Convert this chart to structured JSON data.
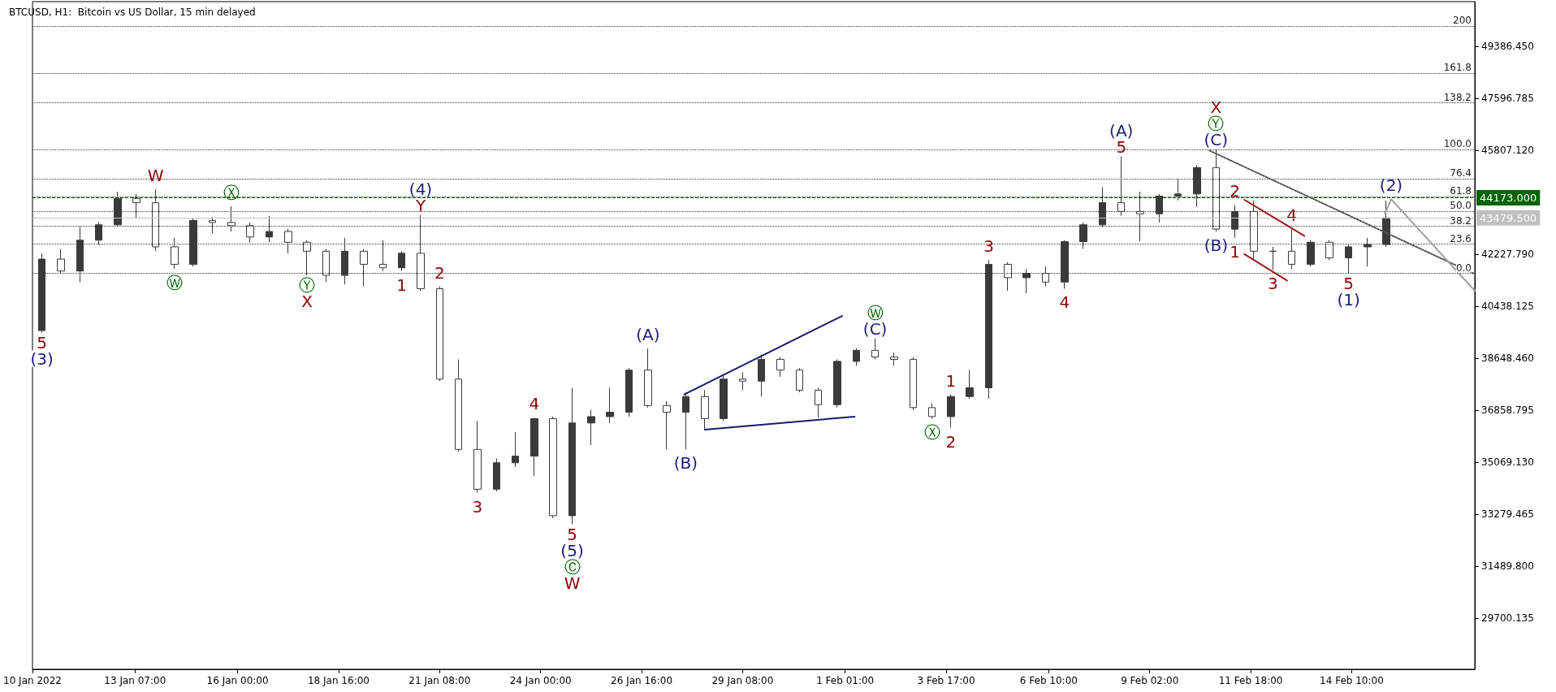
{
  "chart_data": {
    "type": "candlestick",
    "title": "BTCUSD, H1:  Bitcoin vs US Dollar, 15 min delayed",
    "color": "#3a3a3a",
    "x": [
      "2022-01-10T20:00",
      "2022-01-11T08:00",
      "2022-01-11T20:00",
      "2022-01-12T08:00",
      "2022-01-12T20:00",
      "2022-01-13T08:00",
      "2022-01-13T20:00",
      "2022-01-14T08:00",
      "2022-01-14T20:00",
      "2022-01-15T08:00",
      "2022-01-15T20:00",
      "2022-01-16T08:00",
      "2022-01-16T20:00",
      "2022-01-17T08:00",
      "2022-01-17T20:00",
      "2022-01-18T08:00",
      "2022-01-18T20:00",
      "2022-01-19T08:00",
      "2022-01-19T20:00",
      "2022-01-20T08:00",
      "2022-01-20T20:00",
      "2022-01-21T08:00",
      "2022-01-21T20:00",
      "2022-01-22T08:00",
      "2022-01-22T20:00",
      "2022-01-23T08:00",
      "2022-01-23T20:00",
      "2022-01-24T08:00",
      "2022-01-24T20:00",
      "2022-01-25T08:00",
      "2022-01-25T20:00",
      "2022-01-26T08:00",
      "2022-01-26T20:00",
      "2022-01-27T08:00",
      "2022-01-27T20:00",
      "2022-01-28T08:00",
      "2022-01-28T20:00",
      "2022-01-29T08:00",
      "2022-01-29T20:00",
      "2022-01-30T08:00",
      "2022-01-30T20:00",
      "2022-01-31T08:00",
      "2022-01-31T20:00",
      "2022-02-01T08:00",
      "2022-02-01T20:00",
      "2022-02-02T08:00",
      "2022-02-02T20:00",
      "2022-02-03T08:00",
      "2022-02-03T20:00",
      "2022-02-04T08:00",
      "2022-02-04T20:00",
      "2022-02-05T08:00",
      "2022-02-05T20:00",
      "2022-02-06T08:00",
      "2022-02-06T20:00",
      "2022-02-07T08:00",
      "2022-02-07T20:00",
      "2022-02-08T08:00",
      "2022-02-08T20:00",
      "2022-02-09T08:00",
      "2022-02-09T20:00",
      "2022-02-10T08:00",
      "2022-02-10T20:00",
      "2022-02-11T08:00",
      "2022-02-11T20:00",
      "2022-02-12T08:00",
      "2022-02-12T20:00",
      "2022-02-13T08:00",
      "2022-02-13T20:00",
      "2022-02-14T08:00",
      "2022-02-14T20:00",
      "2022-02-15T08:00"
    ],
    "ohlc": [
      [
        39600,
        42260,
        39530,
        42060
      ],
      [
        42060,
        42410,
        41570,
        41650
      ],
      [
        41650,
        43170,
        41270,
        42710
      ],
      [
        42710,
        43320,
        42560,
        43240
      ],
      [
        43240,
        44380,
        43170,
        44150
      ],
      [
        44150,
        44300,
        43470,
        44000
      ],
      [
        44000,
        44460,
        42330,
        42480
      ],
      [
        42480,
        42790,
        41720,
        41880
      ],
      [
        41880,
        43470,
        41800,
        43390
      ],
      [
        43390,
        43510,
        42940,
        43320
      ],
      [
        43320,
        43880,
        43010,
        43210
      ],
      [
        43210,
        43320,
        42630,
        42820
      ],
      [
        42820,
        43550,
        42640,
        43010
      ],
      [
        43010,
        43090,
        42260,
        42640
      ],
      [
        42640,
        42710,
        41500,
        42330
      ],
      [
        42330,
        42410,
        41270,
        41500
      ],
      [
        41500,
        42790,
        41190,
        42330
      ],
      [
        42330,
        42410,
        41120,
        41880
      ],
      [
        41880,
        42710,
        41650,
        41760
      ],
      [
        41760,
        42330,
        41650,
        42260
      ],
      [
        42260,
        43580,
        40970,
        41040
      ],
      [
        41040,
        41120,
        37860,
        37930
      ],
      [
        37930,
        38610,
        35430,
        35510
      ],
      [
        35510,
        36490,
        34020,
        34140
      ],
      [
        34140,
        35200,
        34060,
        35050
      ],
      [
        35050,
        36110,
        34900,
        35280
      ],
      [
        35280,
        36600,
        34590,
        36570
      ],
      [
        36570,
        36640,
        33150,
        33230
      ],
      [
        33230,
        37630,
        32930,
        36420
      ],
      [
        36420,
        36870,
        35660,
        36640
      ],
      [
        36640,
        37630,
        36420,
        36790
      ],
      [
        36790,
        38310,
        36640,
        38240
      ],
      [
        38240,
        38990,
        36950,
        37020
      ],
      [
        37020,
        37170,
        35510,
        36790
      ],
      [
        36790,
        37480,
        35510,
        37330
      ],
      [
        37330,
        37550,
        36190,
        36570
      ],
      [
        36570,
        38080,
        36490,
        37930
      ],
      [
        37930,
        38160,
        37550,
        37860
      ],
      [
        37860,
        38770,
        37330,
        38610
      ],
      [
        38610,
        38690,
        38010,
        38240
      ],
      [
        38240,
        38310,
        37480,
        37550
      ],
      [
        37550,
        37630,
        36600,
        37050
      ],
      [
        37050,
        38610,
        36950,
        38540
      ],
      [
        38540,
        38990,
        38390,
        38920
      ],
      [
        38920,
        39330,
        38610,
        38690
      ],
      [
        38690,
        38840,
        38390,
        38610
      ],
      [
        38610,
        38690,
        36870,
        36950
      ],
      [
        36950,
        37100,
        36570,
        36640
      ],
      [
        36640,
        37400,
        36260,
        37330
      ],
      [
        37330,
        38240,
        37250,
        37630
      ],
      [
        37630,
        42030,
        37250,
        41880
      ],
      [
        41880,
        41950,
        40970,
        41420
      ],
      [
        41420,
        41720,
        40890,
        41570
      ],
      [
        41570,
        41800,
        41120,
        41270
      ],
      [
        41270,
        42710,
        41040,
        42660
      ],
      [
        42660,
        43320,
        42410,
        43240
      ],
      [
        43240,
        44530,
        43170,
        44000
      ],
      [
        44000,
        45590,
        43550,
        43700
      ],
      [
        43700,
        44380,
        42670,
        43620
      ],
      [
        43620,
        44300,
        43320,
        44230
      ],
      [
        44230,
        44830,
        44080,
        44300
      ],
      [
        44300,
        45290,
        43850,
        45210
      ],
      [
        45210,
        45820,
        43010,
        43090
      ],
      [
        43090,
        43920,
        42790,
        43700
      ],
      [
        43700,
        44080,
        42030,
        42330
      ],
      [
        42330,
        42480,
        41690,
        42330
      ],
      [
        42330,
        43090,
        41720,
        41880
      ],
      [
        41880,
        42710,
        41800,
        42640
      ],
      [
        42640,
        42710,
        42030,
        42100
      ],
      [
        42100,
        42560,
        41570,
        42480
      ],
      [
        42480,
        42790,
        41800,
        42560
      ],
      [
        42560,
        44080,
        42480,
        43480
      ]
    ],
    "series": [
      {
        "type": "line",
        "color": "#1a1a6e",
        "x": [
          "2022-01-27T19:00",
          "2022-01-31T23:00"
        ],
        "values": [
          37400,
          40100
        ]
      },
      {
        "type": "line",
        "color": "#1a1a6e",
        "x": [
          "2022-01-28T08:00",
          "2022-02-01T07:00"
        ],
        "values": [
          36190,
          36640
        ]
      },
      {
        "type": "line",
        "color": "#a01818",
        "x": [
          "2022-02-11T14:00",
          "2022-02-13T04:00"
        ],
        "values": [
          44100,
          42860
        ]
      },
      {
        "type": "line",
        "color": "#a01818",
        "x": [
          "2022-02-11T14:00",
          "2022-02-12T17:00"
        ],
        "values": [
          42230,
          41320
        ]
      },
      {
        "type": "line",
        "color": "#555555",
        "line_style": "dotted",
        "x": [
          "2022-02-10T16:00",
          "2022-02-17T15:00"
        ],
        "values": [
          45790,
          41570
        ]
      },
      {
        "type": "line",
        "color": "#a0a0a0",
        "x": [
          "2022-02-15T07:00",
          "2022-02-15T11:00",
          "2022-02-17T16:00"
        ],
        "values": [
          43620,
          44120,
          40970
        ]
      }
    ],
    "xlim": [
      "2022-01-10T14:00",
      "2022-02-17T16:00"
    ],
    "xticks": [
      {
        "value": "2022-01-10T14:00",
        "label": "10 Jan 2022"
      },
      {
        "value": "2022-01-13T07:00",
        "label": "13 Jan 07:00"
      },
      {
        "value": "2022-01-16T00:00",
        "label": "16 Jan 00:00"
      },
      {
        "value": "2022-01-18T16:00",
        "label": "18 Jan 16:00"
      },
      {
        "value": "2022-01-21T08:00",
        "label": "21 Jan 08:00"
      },
      {
        "value": "2022-01-24T00:00",
        "label": "24 Jan 00:00"
      },
      {
        "value": "2022-01-26T16:00",
        "label": "26 Jan 16:00"
      },
      {
        "value": "2022-01-29T08:00",
        "label": "29 Jan 08:00"
      },
      {
        "value": "2022-02-01T01:00",
        "label": "1 Feb 01:00"
      },
      {
        "value": "2022-02-03T17:00",
        "label": "3 Feb 17:00"
      },
      {
        "value": "2022-02-06T10:00",
        "label": "6 Feb 10:00"
      },
      {
        "value": "2022-02-09T02:00",
        "label": "9 Feb 02:00"
      },
      {
        "value": "2022-02-11T18:00",
        "label": "11 Feb 18:00"
      },
      {
        "value": "2022-02-14T10:00",
        "label": "14 Feb 10:00"
      }
    ],
    "ylim": [
      27945,
      50920
    ],
    "yticks": [
      {
        "value": 29700.135,
        "label": "29700.135"
      },
      {
        "value": 31489.8,
        "label": "31489.800"
      },
      {
        "value": 33279.465,
        "label": "33279.465"
      },
      {
        "value": 35069.13,
        "label": "35069.130"
      },
      {
        "value": 36858.795,
        "label": "36858.795"
      },
      {
        "value": 38648.46,
        "label": "38648.460"
      },
      {
        "value": 40438.125,
        "label": "40438.125"
      },
      {
        "value": 42227.79,
        "label": "42227.790"
      },
      {
        "value": 45807.12,
        "label": "45807.120"
      },
      {
        "value": 47596.785,
        "label": "47596.785"
      },
      {
        "value": 49386.45,
        "label": "49386.450"
      }
    ],
    "ref_lines": [
      {
        "axis": "y",
        "value": 44173,
        "label": "44173.000",
        "color": "#006400",
        "line_style": "dashed"
      },
      {
        "axis": "y",
        "value": 43479.5,
        "label": "43479.500",
        "color": "#c0c0c0",
        "line_style": "solid"
      },
      {
        "axis": "y",
        "value": 50070,
        "color": "#333333",
        "line_style": "dotted"
      },
      {
        "axis": "y",
        "value": 48450,
        "color": "#333333",
        "line_style": "dotted"
      },
      {
        "axis": "y",
        "value": 47440,
        "color": "#333333",
        "line_style": "dotted"
      },
      {
        "axis": "y",
        "value": 45820,
        "color": "#333333",
        "line_style": "dotted"
      },
      {
        "axis": "y",
        "value": 44820,
        "color": "#333333",
        "line_style": "dotted"
      },
      {
        "axis": "y",
        "value": 44200,
        "color": "#333333",
        "line_style": "dotted"
      },
      {
        "axis": "y",
        "value": 43700,
        "color": "#333333",
        "line_style": "dotted"
      },
      {
        "axis": "y",
        "value": 43190,
        "color": "#333333",
        "line_style": "dotted"
      },
      {
        "axis": "y",
        "value": 42570,
        "color": "#333333",
        "line_style": "dotted"
      },
      {
        "axis": "y",
        "value": 41570,
        "color": "#333333",
        "line_style": "dotted"
      }
    ],
    "annotations": [
      {
        "text": "5",
        "x": "2022-01-10T20:00",
        "y": 39530
      },
      {
        "text": "(3)",
        "x": "2022-01-10T20:00",
        "y": 39530
      },
      {
        "text": "W",
        "x": "2022-01-13T20:00",
        "y": 44460
      },
      {
        "text": "Ⓦ",
        "x": "2022-01-14T08:00",
        "y": 41720
      },
      {
        "text": "Ⓧ",
        "x": "2022-01-15T20:00",
        "y": 43880
      },
      {
        "text": "Ⓨ",
        "x": "2022-01-17T20:00",
        "y": 41500
      },
      {
        "text": "X",
        "x": "2022-01-17T20:00",
        "y": 41500
      },
      {
        "text": "(4)",
        "x": "2022-01-20T20:00",
        "y": 43580
      },
      {
        "text": "Y",
        "x": "2022-01-20T20:00",
        "y": 43580
      },
      {
        "text": "2",
        "x": "2022-01-21T08:00",
        "y": 41120
      },
      {
        "text": "1",
        "x": "2022-01-20T08:00",
        "y": 41650
      },
      {
        "text": "3",
        "x": "2022-01-22T08:00",
        "y": 34020
      },
      {
        "text": "4",
        "x": "2022-01-23T20:00",
        "y": 36600
      },
      {
        "text": "5",
        "x": "2022-01-24T20:00",
        "y": 32930
      },
      {
        "text": "(5)",
        "x": "2022-01-24T20:00",
        "y": 32930
      },
      {
        "text": "Ⓒ",
        "x": "2022-01-24T20:00",
        "y": 32930
      },
      {
        "text": "W",
        "x": "2022-01-24T20:00",
        "y": 32930
      },
      {
        "text": "(A)",
        "x": "2022-01-26T20:00",
        "y": 38990
      },
      {
        "text": "(B)",
        "x": "2022-01-27T20:00",
        "y": 35510
      },
      {
        "text": "Ⓦ",
        "x": "2022-02-01T20:00",
        "y": 39330
      },
      {
        "text": "(C)",
        "x": "2022-02-01T20:00",
        "y": 39330
      },
      {
        "text": "1",
        "x": "2022-02-03T20:00",
        "y": 37400
      },
      {
        "text": "Ⓧ",
        "x": "2022-02-03T08:00",
        "y": 36570
      },
      {
        "text": "2",
        "x": "2022-02-03T20:00",
        "y": 36260
      },
      {
        "text": "3",
        "x": "2022-02-04T20:00",
        "y": 42030
      },
      {
        "text": "4",
        "x": "2022-02-06T20:00",
        "y": 41040
      },
      {
        "text": "(A)",
        "x": "2022-02-08T08:00",
        "y": 45590
      },
      {
        "text": "5",
        "x": "2022-02-08T08:00",
        "y": 45590
      },
      {
        "text": "X",
        "x": "2022-02-10T20:00",
        "y": 45820
      },
      {
        "text": "Ⓨ",
        "x": "2022-02-10T20:00",
        "y": 45820
      },
      {
        "text": "(C)",
        "x": "2022-02-10T20:00",
        "y": 45820
      },
      {
        "text": "(B)",
        "x": "2022-02-10T20:00",
        "y": 43010
      },
      {
        "text": "1",
        "x": "2022-02-11T08:00",
        "y": 42790
      },
      {
        "text": "2",
        "x": "2022-02-11T08:00",
        "y": 43920
      },
      {
        "text": "3",
        "x": "2022-02-12T08:00",
        "y": 41690
      },
      {
        "text": "4",
        "x": "2022-02-12T20:00",
        "y": 43090
      },
      {
        "text": "5",
        "x": "2022-02-14T08:00",
        "y": 41570
      },
      {
        "text": "(1)",
        "x": "2022-02-14T08:00",
        "y": 41570
      },
      {
        "text": "(2)",
        "x": "2022-02-15T11:00",
        "y": 44120
      },
      {
        "text": "200",
        "x": "2022-02-17T16:00",
        "y": 50070
      },
      {
        "text": "161.8",
        "x": "2022-02-17T16:00",
        "y": 48450
      },
      {
        "text": "138.2",
        "x": "2022-02-17T16:00",
        "y": 47440
      },
      {
        "text": "100.0",
        "x": "2022-02-17T16:00",
        "y": 45820
      },
      {
        "text": "76.4",
        "x": "2022-02-17T16:00",
        "y": 44820
      },
      {
        "text": "61.8",
        "x": "2022-02-17T16:00",
        "y": 44200
      },
      {
        "text": "50.0",
        "x": "2022-02-17T16:00",
        "y": 43700
      },
      {
        "text": "38.2",
        "x": "2022-02-17T16:00",
        "y": 43190
      },
      {
        "text": "23.6",
        "x": "2022-02-17T16:00",
        "y": 42570
      },
      {
        "text": "0.0",
        "x": "2022-02-17T16:00",
        "y": 41570
      }
    ]
  }
}
